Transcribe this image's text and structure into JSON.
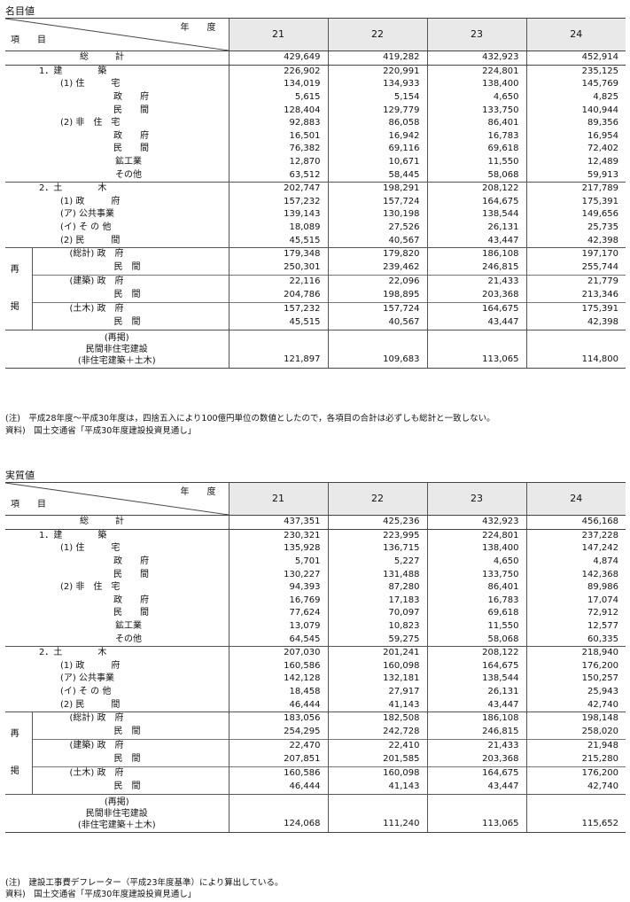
{
  "nominal": {
    "title": "名目値",
    "header": {
      "nendo": "年　　度",
      "koumoku": "項　　目",
      "years": [
        "21",
        "22",
        "23",
        "24"
      ]
    },
    "rows": [
      {
        "label": "総　　　計",
        "values": [
          "429,649",
          "419,282",
          "432,923",
          "452,914"
        ]
      },
      {
        "label": "1．建　　　　築",
        "values": [
          "226,902",
          "220,991",
          "224,801",
          "235,125"
        ]
      },
      {
        "label": "(1) 住　　　宅",
        "values": [
          "134,019",
          "134,933",
          "138,400",
          "145,769"
        ]
      },
      {
        "label": "政　　府",
        "values": [
          "5,615",
          "5,154",
          "4,650",
          "4,825"
        ]
      },
      {
        "label": "民　　間",
        "values": [
          "128,404",
          "129,779",
          "133,750",
          "140,944"
        ]
      },
      {
        "label": "(2) 非　住　宅",
        "values": [
          "92,883",
          "86,058",
          "86,401",
          "89,356"
        ]
      },
      {
        "label": "政　　府",
        "values": [
          "16,501",
          "16,942",
          "16,783",
          "16,954"
        ]
      },
      {
        "label": "民　　間",
        "values": [
          "76,382",
          "69,116",
          "69,618",
          "72,402"
        ]
      },
      {
        "label": "鉱工業",
        "values": [
          "12,870",
          "10,671",
          "11,550",
          "12,489"
        ]
      },
      {
        "label": "その他",
        "values": [
          "63,512",
          "58,445",
          "58,068",
          "59,913"
        ]
      },
      {
        "label": "2．土　　　　木",
        "values": [
          "202,747",
          "198,291",
          "208,122",
          "217,789"
        ]
      },
      {
        "label": "(1) 政　　　府",
        "values": [
          "157,232",
          "157,724",
          "164,675",
          "175,391"
        ]
      },
      {
        "label": "(ア) 公共事業",
        "values": [
          "139,143",
          "130,198",
          "138,544",
          "149,656"
        ]
      },
      {
        "label": "(イ) そ の 他",
        "values": [
          "18,089",
          "27,526",
          "26,131",
          "25,735"
        ]
      },
      {
        "label": "(2) 民　　　間",
        "values": [
          "45,515",
          "40,567",
          "43,447",
          "42,398"
        ]
      },
      {
        "label": "(総計) 政　府",
        "values": [
          "179,348",
          "179,820",
          "186,108",
          "197,170"
        ]
      },
      {
        "label": "民　間",
        "values": [
          "250,301",
          "239,462",
          "246,815",
          "255,744"
        ]
      },
      {
        "label": "(建築) 政　府",
        "values": [
          "22,116",
          "22,096",
          "21,433",
          "21,779"
        ]
      },
      {
        "label": "民　間",
        "values": [
          "204,786",
          "198,895",
          "203,368",
          "213,346"
        ]
      },
      {
        "label": "(土木) 政　府",
        "values": [
          "157,232",
          "157,724",
          "164,675",
          "175,391"
        ]
      },
      {
        "label": "民　間",
        "values": [
          "45,515",
          "40,567",
          "43,447",
          "42,398"
        ]
      },
      {
        "label": "(再掲)\n民間非住宅建設\n(非住宅建築＋土木)",
        "values": [
          "121,897",
          "109,683",
          "113,065",
          "114,800"
        ]
      }
    ],
    "sai": "再",
    "kei": "掲",
    "notes": [
      "(注)　平成28年度～平成30年度は，四捨五入により100億円単位の数値としたので，各項目の合計は必ずしも総計と一致しない。",
      "資料)　国土交通省「平成30年度建設投資見通し」"
    ]
  },
  "real": {
    "title": "実質値",
    "header": {
      "nendo": "年　　度",
      "koumoku": "項　　目",
      "years": [
        "21",
        "22",
        "23",
        "24"
      ]
    },
    "rows": [
      {
        "label": "総　　　計",
        "values": [
          "437,351",
          "425,236",
          "432,923",
          "456,168"
        ]
      },
      {
        "label": "1．建　　　　築",
        "values": [
          "230,321",
          "223,995",
          "224,801",
          "237,228"
        ]
      },
      {
        "label": "(1) 住　　　宅",
        "values": [
          "135,928",
          "136,715",
          "138,400",
          "147,242"
        ]
      },
      {
        "label": "政　　府",
        "values": [
          "5,701",
          "5,227",
          "4,650",
          "4,874"
        ]
      },
      {
        "label": "民　　間",
        "values": [
          "130,227",
          "131,488",
          "133,750",
          "142,368"
        ]
      },
      {
        "label": "(2) 非　住　宅",
        "values": [
          "94,393",
          "87,280",
          "86,401",
          "89,986"
        ]
      },
      {
        "label": "政　　府",
        "values": [
          "16,769",
          "17,183",
          "16,783",
          "17,074"
        ]
      },
      {
        "label": "民　　間",
        "values": [
          "77,624",
          "70,097",
          "69,618",
          "72,912"
        ]
      },
      {
        "label": "鉱工業",
        "values": [
          "13,079",
          "10,823",
          "11,550",
          "12,577"
        ]
      },
      {
        "label": "その他",
        "values": [
          "64,545",
          "59,275",
          "58,068",
          "60,335"
        ]
      },
      {
        "label": "2．土　　　　木",
        "values": [
          "207,030",
          "201,241",
          "208,122",
          "218,940"
        ]
      },
      {
        "label": "(1) 政　　　府",
        "values": [
          "160,586",
          "160,098",
          "164,675",
          "176,200"
        ]
      },
      {
        "label": "(ア) 公共事業",
        "values": [
          "142,128",
          "132,181",
          "138,544",
          "150,257"
        ]
      },
      {
        "label": "(イ) そ の 他",
        "values": [
          "18,458",
          "27,917",
          "26,131",
          "25,943"
        ]
      },
      {
        "label": "(2) 民　　　間",
        "values": [
          "46,444",
          "41,143",
          "43,447",
          "42,740"
        ]
      },
      {
        "label": "(総計) 政　府",
        "values": [
          "183,056",
          "182,508",
          "186,108",
          "198,148"
        ]
      },
      {
        "label": "民　間",
        "values": [
          "254,295",
          "242,728",
          "246,815",
          "258,020"
        ]
      },
      {
        "label": "(建築) 政　府",
        "values": [
          "22,470",
          "22,410",
          "21,433",
          "21,948"
        ]
      },
      {
        "label": "民　間",
        "values": [
          "207,851",
          "201,585",
          "203,368",
          "215,280"
        ]
      },
      {
        "label": "(土木) 政　府",
        "values": [
          "160,586",
          "160,098",
          "164,675",
          "176,200"
        ]
      },
      {
        "label": "民　間",
        "values": [
          "46,444",
          "41,143",
          "43,447",
          "42,740"
        ]
      },
      {
        "label": "(再掲)\n民間非住宅建設\n(非住宅建築＋土木)",
        "values": [
          "124,068",
          "111,240",
          "113,065",
          "115,652"
        ]
      }
    ],
    "sai": "再",
    "kei": "掲",
    "notes": [
      "(注)　建設工事費デフレーター（平成23年度基準）により算出している。",
      "資料)　国土交通省「平成30年度建設投資見通し」"
    ]
  }
}
